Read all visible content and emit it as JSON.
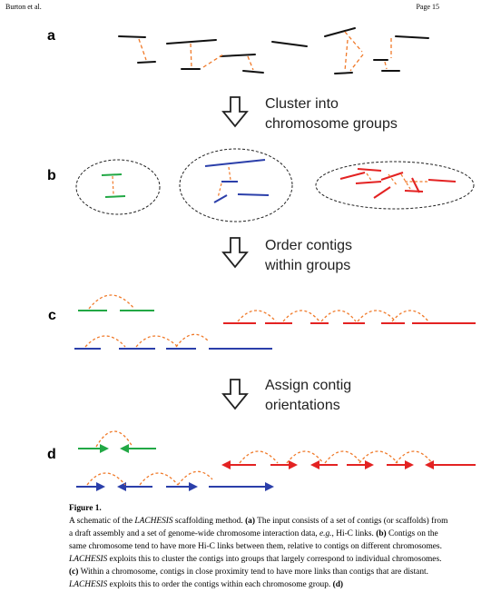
{
  "header": {
    "left": "Burton et al.",
    "right": "Page 15"
  },
  "panels": [
    "a",
    "b",
    "c",
    "d"
  ],
  "steps": [
    [
      "Cluster into",
      "chromosome groups"
    ],
    [
      "Order contigs",
      "within groups"
    ],
    [
      "Assign contig",
      "orientations"
    ]
  ],
  "colors": {
    "contig_black": "#111111",
    "link_orange": "#f07a2a",
    "green": "#22a845",
    "blue": "#2b3faa",
    "red": "#e32222",
    "arrow_outline": "#222222"
  },
  "caption": {
    "title": "Figure 1.",
    "parts": [
      {
        "t": "A schematic of the "
      },
      {
        "t": "LACHESIS",
        "i": true
      },
      {
        "t": " scaffolding method. "
      },
      {
        "t": "(a)",
        "b": true
      },
      {
        "t": " The input consists of a set of contigs (or scaffolds) from a draft assembly and a set of genome-wide chromosome interaction data, "
      },
      {
        "t": "e.g.",
        "i": true
      },
      {
        "t": ", Hi-C links. "
      },
      {
        "t": "(b)",
        "b": true
      },
      {
        "t": " Contigs on the same chromosome tend to have more Hi-C links between them, relative to contigs on different chromosomes. "
      },
      {
        "t": "LACHESIS",
        "i": true
      },
      {
        "t": " exploits this to cluster the contigs into groups that largely correspond to individual chromosomes. "
      },
      {
        "t": "(c)",
        "b": true
      },
      {
        "t": " Within a chromosome, contigs in close proximity tend to have more links than contigs that are distant. "
      },
      {
        "t": "LACHESIS",
        "i": true
      },
      {
        "t": " exploits this to order the contigs within each chromosome group. "
      },
      {
        "t": "(d)",
        "b": true
      }
    ]
  }
}
